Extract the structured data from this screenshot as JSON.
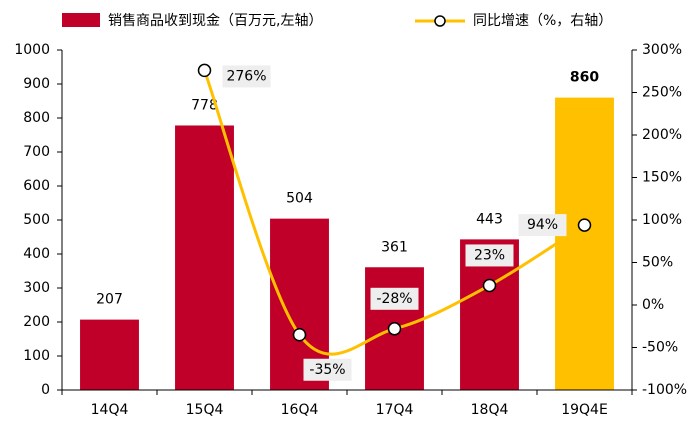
{
  "chart_data": {
    "type": "bar-line",
    "categories": [
      "14Q4",
      "15Q4",
      "16Q4",
      "17Q4",
      "18Q4",
      "19Q4E"
    ],
    "series": [
      {
        "name": "销售商品收到现金（百万元,左轴）",
        "type": "bar",
        "color": "#c00028",
        "colors": [
          "#c00028",
          "#c00028",
          "#c00028",
          "#c00028",
          "#c00028",
          "#ffc000"
        ],
        "values": [
          207,
          778,
          504,
          361,
          443,
          860
        ]
      },
      {
        "name": "同比增速（%，右轴）",
        "type": "line",
        "axis": "y2",
        "color": "#ffc000",
        "values": [
          null,
          276,
          -35,
          -28,
          23,
          94
        ],
        "value_labels": [
          null,
          "276%",
          "-35%",
          "-28%",
          "23%",
          "94%"
        ]
      }
    ],
    "ylim": [
      0,
      1000
    ],
    "yticks": [
      0,
      100,
      200,
      300,
      400,
      500,
      600,
      700,
      800,
      900,
      1000
    ],
    "y2lim": [
      -100,
      300
    ],
    "y2ticks": [
      {
        "value": -100,
        "label": "-100%"
      },
      {
        "value": -50,
        "label": "-50%"
      },
      {
        "value": 0,
        "label": "0%"
      },
      {
        "value": 50,
        "label": "50%"
      },
      {
        "value": 100,
        "label": "100%"
      },
      {
        "value": 150,
        "label": "150%"
      },
      {
        "value": 200,
        "label": "200%"
      },
      {
        "value": 250,
        "label": "250%"
      },
      {
        "value": 300,
        "label": "300%"
      }
    ],
    "grid": false,
    "legend": "top"
  }
}
